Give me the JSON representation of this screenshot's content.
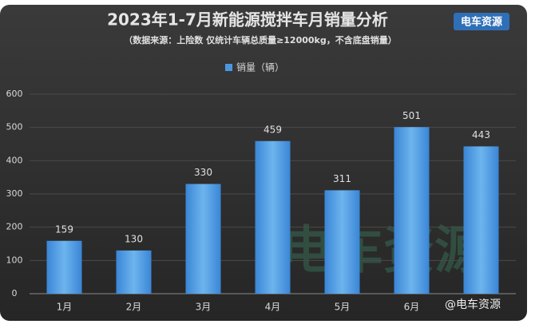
{
  "chart_data": {
    "type": "bar",
    "title": "2023年1-7月新能源搅拌车月销量分析",
    "subtitle": "（数据来源：上险数 仅统计车辆总质量≥12000kg，不含底盘销量）",
    "logo": "电车资源",
    "watermark": "电车资源",
    "credit": "@电车资源",
    "categories": [
      "1月",
      "2月",
      "3月",
      "4月",
      "5月",
      "6月",
      null
    ],
    "series": [
      {
        "name": "销量（辆）",
        "color": "#4a97e0",
        "values": [
          159,
          130,
          330,
          459,
          311,
          501,
          443
        ]
      }
    ],
    "ylim": [
      0,
      600
    ],
    "yticks": [
      0,
      100,
      200,
      300,
      400,
      500,
      600
    ],
    "grid": true,
    "legend": "top"
  }
}
